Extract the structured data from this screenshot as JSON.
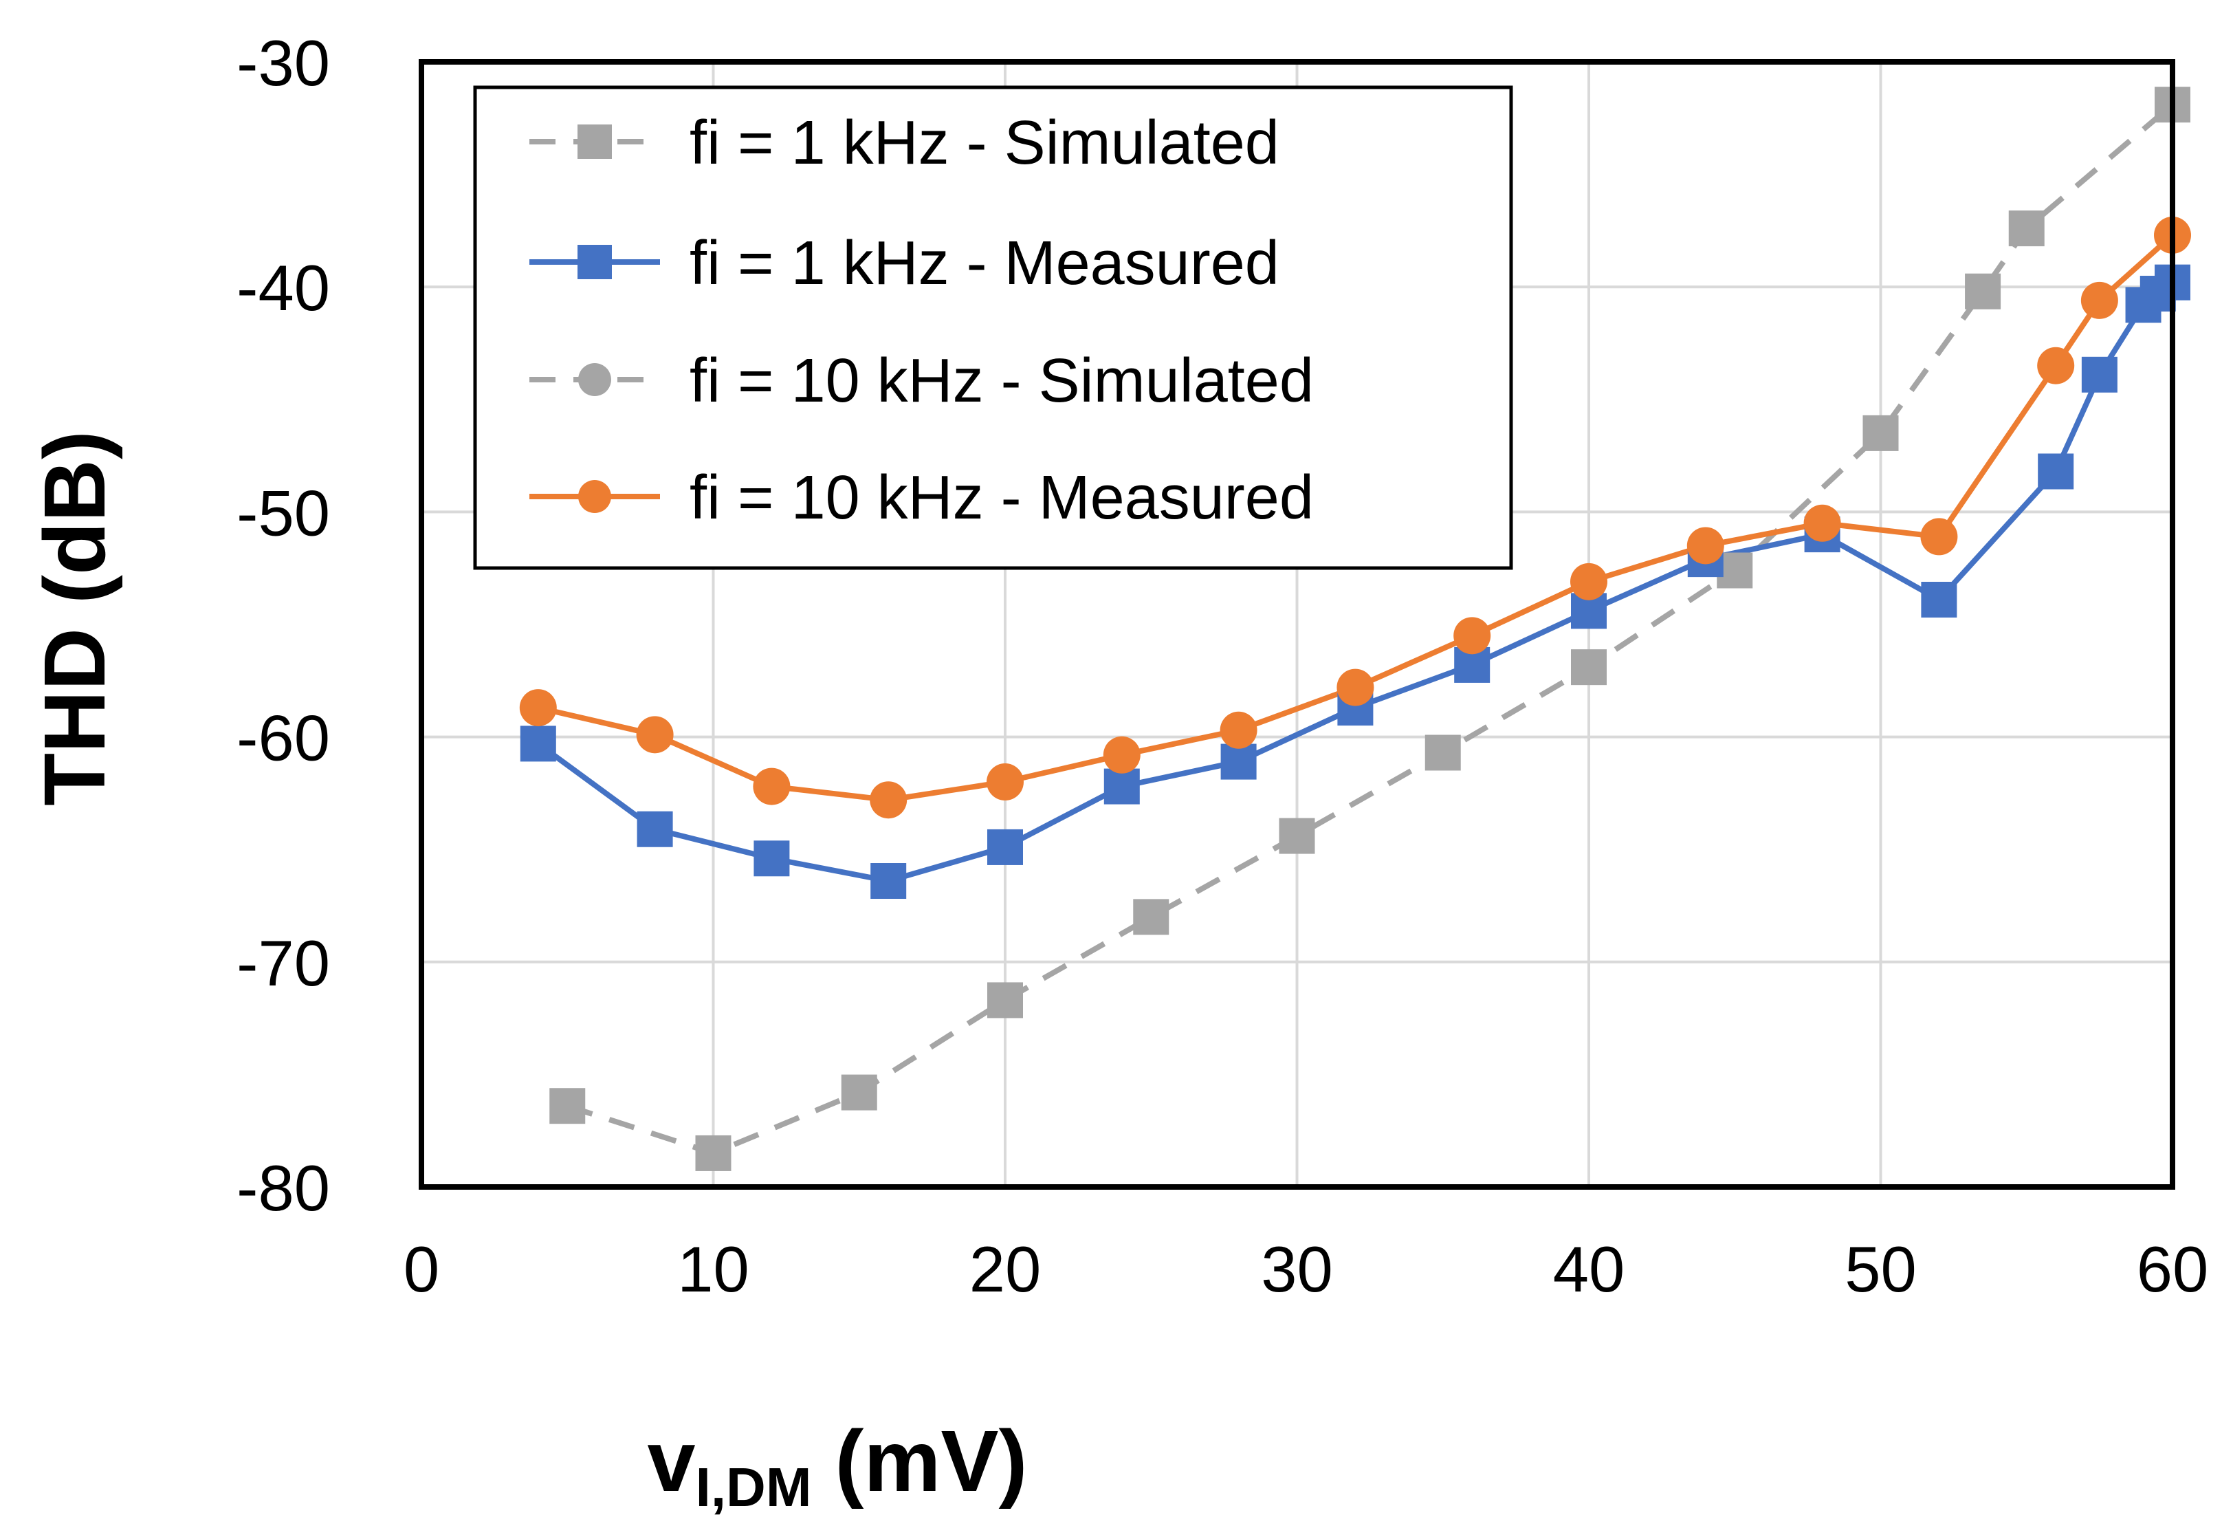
{
  "chart_data": {
    "type": "line",
    "title": "",
    "xlabel": "v",
    "xlabel_subscript": "I,DM",
    "xlabel_unit": "(mV)",
    "ylabel": "THD (dB)",
    "xlim": [
      0,
      60
    ],
    "ylim": [
      -80,
      -30
    ],
    "xticks": [
      0,
      10,
      20,
      30,
      40,
      50,
      60
    ],
    "yticks": [
      -80,
      -70,
      -60,
      -50,
      -40,
      -30
    ],
    "grid": true,
    "legend_position": "top-left",
    "series": [
      {
        "name": "fi = 1 kHz - Simulated",
        "color": "#A5A5A5",
        "dash": true,
        "marker": "square",
        "points": [
          [
            5,
            -76.4
          ],
          [
            10,
            -78.5
          ],
          [
            15,
            -75.8
          ],
          [
            20,
            -71.7
          ],
          [
            25,
            -68
          ],
          [
            30,
            -64.4
          ],
          [
            35,
            -60.7
          ],
          [
            40,
            -56.9
          ],
          [
            45,
            -52.6
          ],
          [
            50,
            -46.5
          ],
          [
            53.5,
            -40.2
          ],
          [
            55,
            -37.4
          ],
          [
            60,
            -31.9
          ]
        ]
      },
      {
        "name": "fi = 1 kHz - Measured",
        "color": "#4472C4",
        "dash": false,
        "marker": "square",
        "points": [
          [
            4,
            -60.3
          ],
          [
            8,
            -64.1
          ],
          [
            12,
            -65.4
          ],
          [
            16,
            -66.4
          ],
          [
            20,
            -64.9
          ],
          [
            24,
            -62.2
          ],
          [
            28,
            -61.1
          ],
          [
            32,
            -58.7
          ],
          [
            36,
            -56.8
          ],
          [
            40,
            -54.4
          ],
          [
            44,
            -52.1
          ],
          [
            48,
            -51.0
          ],
          [
            52,
            -53.9
          ],
          [
            56,
            -48.2
          ],
          [
            57.5,
            -43.9
          ],
          [
            59,
            -40.8
          ],
          [
            59.5,
            -40.3
          ],
          [
            60,
            -39.8
          ]
        ]
      },
      {
        "name": "fi = 10 kHz - Simulated",
        "color": "#A5A5A5",
        "dash": true,
        "marker": "circle",
        "points": []
      },
      {
        "name": "fi = 10 kHz - Measured",
        "color": "#ED7D31",
        "dash": false,
        "marker": "circle",
        "points": [
          [
            4,
            -58.7
          ],
          [
            8,
            -59.9
          ],
          [
            12,
            -62.2
          ],
          [
            16,
            -62.8
          ],
          [
            20,
            -62.0
          ],
          [
            24,
            -60.8
          ],
          [
            28,
            -59.7
          ],
          [
            32,
            -57.8
          ],
          [
            36,
            -55.5
          ],
          [
            40,
            -53.1
          ],
          [
            44,
            -51.5
          ],
          [
            48,
            -50.5
          ],
          [
            52,
            -51.1
          ],
          [
            56,
            -43.5
          ],
          [
            57.5,
            -40.6
          ],
          [
            60,
            -37.7
          ]
        ]
      }
    ]
  }
}
